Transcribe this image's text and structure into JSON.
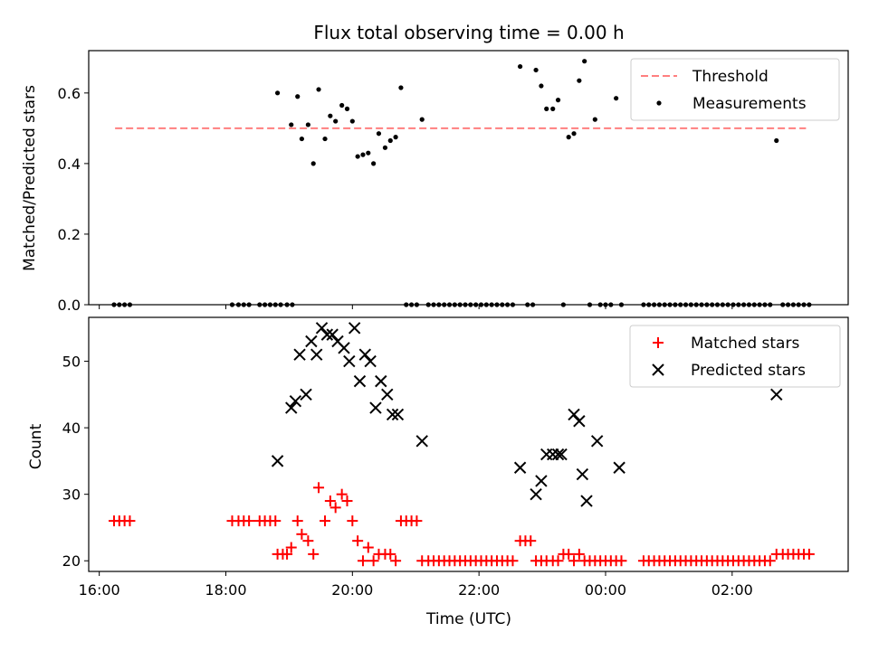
{
  "chart_data": [
    {
      "type": "scatter",
      "title": "Flux total observing time = 0.00 h",
      "xlabel": "",
      "ylabel": "Matched/Predicted stars",
      "xlim": [
        "15:50",
        "27:50"
      ],
      "ylim": [
        0,
        0.72
      ],
      "yticks": [
        0.0,
        0.2,
        0.4,
        0.6
      ],
      "ytick_labels": [
        "0.0",
        "0.2",
        "0.4",
        "0.6"
      ],
      "legend_position": "top-right",
      "threshold": {
        "name": "Threshold",
        "value": 0.5,
        "x_start": "16:15",
        "x_end": "27:10",
        "color": "#ff7f7f"
      },
      "measurements": {
        "name": "Measurements",
        "color": "#000000",
        "points": [
          [
            "16:14",
            0
          ],
          [
            "16:19",
            0
          ],
          [
            "16:24",
            0
          ],
          [
            "16:29",
            0
          ],
          [
            "18:06",
            0
          ],
          [
            "18:12",
            0
          ],
          [
            "18:17",
            0
          ],
          [
            "18:22",
            0
          ],
          [
            "18:32",
            0
          ],
          [
            "18:37",
            0
          ],
          [
            "18:42",
            0
          ],
          [
            "18:47",
            0
          ],
          [
            "18:52",
            0
          ],
          [
            "18:58",
            0
          ],
          [
            "19:03",
            0
          ],
          [
            "18:49",
            0.6
          ],
          [
            "19:02",
            0.51
          ],
          [
            "19:08",
            0.59
          ],
          [
            "19:12",
            0.47
          ],
          [
            "19:18",
            0.51
          ],
          [
            "19:23",
            0.4
          ],
          [
            "19:28",
            0.61
          ],
          [
            "19:34",
            0.47
          ],
          [
            "19:39",
            0.535
          ],
          [
            "19:44",
            0.52
          ],
          [
            "19:50",
            0.565
          ],
          [
            "19:55",
            0.555
          ],
          [
            "20:00",
            0.52
          ],
          [
            "20:05",
            0.42
          ],
          [
            "20:10",
            0.425
          ],
          [
            "20:15",
            0.43
          ],
          [
            "20:20",
            0.4
          ],
          [
            "20:25",
            0.485
          ],
          [
            "20:31",
            0.445
          ],
          [
            "20:36",
            0.465
          ],
          [
            "20:41",
            0.475
          ],
          [
            "20:46",
            0.615
          ],
          [
            "20:51",
            0
          ],
          [
            "20:56",
            0
          ],
          [
            "21:01",
            0
          ],
          [
            "21:06",
            0.525
          ],
          [
            "21:12",
            0
          ],
          [
            "21:17",
            0
          ],
          [
            "21:22",
            0
          ],
          [
            "21:27",
            0
          ],
          [
            "21:32",
            0
          ],
          [
            "21:37",
            0
          ],
          [
            "21:42",
            0
          ],
          [
            "21:47",
            0
          ],
          [
            "21:52",
            0
          ],
          [
            "21:57",
            0
          ],
          [
            "22:02",
            0
          ],
          [
            "22:07",
            0
          ],
          [
            "22:12",
            0
          ],
          [
            "22:17",
            0
          ],
          [
            "22:22",
            0
          ],
          [
            "22:27",
            0
          ],
          [
            "22:32",
            0
          ],
          [
            "22:39",
            0.675
          ],
          [
            "22:46",
            0
          ],
          [
            "22:51",
            0
          ],
          [
            "22:54",
            0.665
          ],
          [
            "22:59",
            0.62
          ],
          [
            "23:04",
            0.555
          ],
          [
            "23:10",
            0.555
          ],
          [
            "23:15",
            0.58
          ],
          [
            "23:20",
            0
          ],
          [
            "23:25",
            0.475
          ],
          [
            "23:30",
            0.485
          ],
          [
            "23:35",
            0.635
          ],
          [
            "23:40",
            0.69
          ],
          [
            "23:45",
            0
          ],
          [
            "23:50",
            0.525
          ],
          [
            "23:55",
            0
          ],
          [
            "24:00",
            0
          ],
          [
            "24:05",
            0
          ],
          [
            "24:10",
            0.585
          ],
          [
            "24:15",
            0
          ],
          [
            "24:36",
            0
          ],
          [
            "24:41",
            0
          ],
          [
            "24:46",
            0
          ],
          [
            "24:51",
            0
          ],
          [
            "24:56",
            0
          ],
          [
            "25:01",
            0
          ],
          [
            "25:06",
            0
          ],
          [
            "25:11",
            0
          ],
          [
            "25:16",
            0
          ],
          [
            "25:21",
            0
          ],
          [
            "25:26",
            0
          ],
          [
            "25:31",
            0
          ],
          [
            "25:36",
            0
          ],
          [
            "25:41",
            0
          ],
          [
            "25:46",
            0
          ],
          [
            "25:51",
            0
          ],
          [
            "25:56",
            0
          ],
          [
            "26:01",
            0
          ],
          [
            "26:06",
            0
          ],
          [
            "26:11",
            0
          ],
          [
            "26:16",
            0
          ],
          [
            "26:21",
            0
          ],
          [
            "26:26",
            0
          ],
          [
            "26:31",
            0
          ],
          [
            "26:36",
            0
          ],
          [
            "26:42",
            0.465
          ],
          [
            "26:48",
            0
          ],
          [
            "26:53",
            0
          ],
          [
            "26:58",
            0
          ],
          [
            "27:03",
            0
          ],
          [
            "27:08",
            0
          ],
          [
            "27:13",
            0
          ]
        ]
      }
    },
    {
      "type": "scatter",
      "title": "",
      "xlabel": "Time (UTC)",
      "ylabel": "Count",
      "xlim": [
        "15:50",
        "27:50"
      ],
      "xticks": [
        "16:00",
        "18:00",
        "20:00",
        "22:00",
        "24:00",
        "26:00"
      ],
      "xtick_labels": [
        "16:00",
        "18:00",
        "20:00",
        "22:00",
        "00:00",
        "02:00"
      ],
      "ylim": [
        18.4,
        56.6
      ],
      "yticks": [
        20,
        30,
        40,
        50
      ],
      "ytick_labels": [
        "20",
        "30",
        "40",
        "50"
      ],
      "legend_position": "top-right",
      "series": [
        {
          "name": "Matched stars",
          "marker": "plus",
          "color": "#ff0000",
          "points": [
            [
              "16:14",
              26
            ],
            [
              "16:19",
              26
            ],
            [
              "16:24",
              26
            ],
            [
              "16:29",
              26
            ],
            [
              "18:06",
              26
            ],
            [
              "18:12",
              26
            ],
            [
              "18:17",
              26
            ],
            [
              "18:22",
              26
            ],
            [
              "18:32",
              26
            ],
            [
              "18:37",
              26
            ],
            [
              "18:42",
              26
            ],
            [
              "18:47",
              26
            ],
            [
              "18:49",
              21
            ],
            [
              "18:54",
              21
            ],
            [
              "18:58",
              21
            ],
            [
              "19:02",
              22
            ],
            [
              "19:08",
              26
            ],
            [
              "19:12",
              24
            ],
            [
              "19:18",
              23
            ],
            [
              "19:23",
              21
            ],
            [
              "19:28",
              31
            ],
            [
              "19:34",
              26
            ],
            [
              "19:39",
              29
            ],
            [
              "19:44",
              28
            ],
            [
              "19:50",
              30
            ],
            [
              "19:55",
              29
            ],
            [
              "20:00",
              26
            ],
            [
              "20:05",
              23
            ],
            [
              "20:10",
              20
            ],
            [
              "20:15",
              22
            ],
            [
              "20:20",
              20
            ],
            [
              "20:25",
              21
            ],
            [
              "20:31",
              21
            ],
            [
              "20:36",
              21
            ],
            [
              "20:41",
              20
            ],
            [
              "20:46",
              26
            ],
            [
              "20:51",
              26
            ],
            [
              "20:56",
              26
            ],
            [
              "21:01",
              26
            ],
            [
              "21:06",
              20
            ],
            [
              "21:12",
              20
            ],
            [
              "21:17",
              20
            ],
            [
              "21:22",
              20
            ],
            [
              "21:27",
              20
            ],
            [
              "21:32",
              20
            ],
            [
              "21:37",
              20
            ],
            [
              "21:42",
              20
            ],
            [
              "21:47",
              20
            ],
            [
              "21:52",
              20
            ],
            [
              "21:57",
              20
            ],
            [
              "22:02",
              20
            ],
            [
              "22:07",
              20
            ],
            [
              "22:12",
              20
            ],
            [
              "22:17",
              20
            ],
            [
              "22:22",
              20
            ],
            [
              "22:27",
              20
            ],
            [
              "22:32",
              20
            ],
            [
              "22:39",
              23
            ],
            [
              "22:44",
              23
            ],
            [
              "22:49",
              23
            ],
            [
              "22:54",
              20
            ],
            [
              "22:59",
              20
            ],
            [
              "23:04",
              20
            ],
            [
              "23:10",
              20
            ],
            [
              "23:15",
              20
            ],
            [
              "23:20",
              21
            ],
            [
              "23:25",
              21
            ],
            [
              "23:30",
              20
            ],
            [
              "23:35",
              21
            ],
            [
              "23:40",
              20
            ],
            [
              "23:45",
              20
            ],
            [
              "23:50",
              20
            ],
            [
              "23:55",
              20
            ],
            [
              "24:00",
              20
            ],
            [
              "24:05",
              20
            ],
            [
              "24:10",
              20
            ],
            [
              "24:15",
              20
            ],
            [
              "24:36",
              20
            ],
            [
              "24:41",
              20
            ],
            [
              "24:46",
              20
            ],
            [
              "24:51",
              20
            ],
            [
              "24:56",
              20
            ],
            [
              "25:01",
              20
            ],
            [
              "25:06",
              20
            ],
            [
              "25:11",
              20
            ],
            [
              "25:16",
              20
            ],
            [
              "25:21",
              20
            ],
            [
              "25:26",
              20
            ],
            [
              "25:31",
              20
            ],
            [
              "25:36",
              20
            ],
            [
              "25:41",
              20
            ],
            [
              "25:46",
              20
            ],
            [
              "25:51",
              20
            ],
            [
              "25:56",
              20
            ],
            [
              "26:01",
              20
            ],
            [
              "26:06",
              20
            ],
            [
              "26:11",
              20
            ],
            [
              "26:16",
              20
            ],
            [
              "26:21",
              20
            ],
            [
              "26:26",
              20
            ],
            [
              "26:31",
              20
            ],
            [
              "26:36",
              20
            ],
            [
              "26:42",
              21
            ],
            [
              "26:48",
              21
            ],
            [
              "26:53",
              21
            ],
            [
              "26:58",
              21
            ],
            [
              "27:03",
              21
            ],
            [
              "27:08",
              21
            ],
            [
              "27:13",
              21
            ]
          ]
        },
        {
          "name": "Predicted stars",
          "marker": "x",
          "color": "#000000",
          "points": [
            [
              "18:49",
              35
            ],
            [
              "19:02",
              43
            ],
            [
              "19:06",
              44
            ],
            [
              "19:10",
              51
            ],
            [
              "19:16",
              45
            ],
            [
              "19:21",
              53
            ],
            [
              "19:26",
              51
            ],
            [
              "19:31",
              55
            ],
            [
              "19:36",
              54
            ],
            [
              "19:41",
              54
            ],
            [
              "19:46",
              53
            ],
            [
              "19:52",
              52
            ],
            [
              "19:57",
              50
            ],
            [
              "20:02",
              55
            ],
            [
              "20:07",
              47
            ],
            [
              "20:12",
              51
            ],
            [
              "20:17",
              50
            ],
            [
              "20:22",
              43
            ],
            [
              "20:27",
              47
            ],
            [
              "20:33",
              45
            ],
            [
              "20:38",
              42
            ],
            [
              "20:43",
              42
            ],
            [
              "21:06",
              38
            ],
            [
              "22:39",
              34
            ],
            [
              "22:54",
              30
            ],
            [
              "22:59",
              32
            ],
            [
              "23:04",
              36
            ],
            [
              "23:10",
              36
            ],
            [
              "23:15",
              36
            ],
            [
              "23:18",
              36
            ],
            [
              "23:30",
              42
            ],
            [
              "23:35",
              41
            ],
            [
              "23:38",
              33
            ],
            [
              "23:42",
              29
            ],
            [
              "23:52",
              38
            ],
            [
              "24:13",
              34
            ],
            [
              "26:42",
              45
            ]
          ]
        }
      ]
    }
  ]
}
